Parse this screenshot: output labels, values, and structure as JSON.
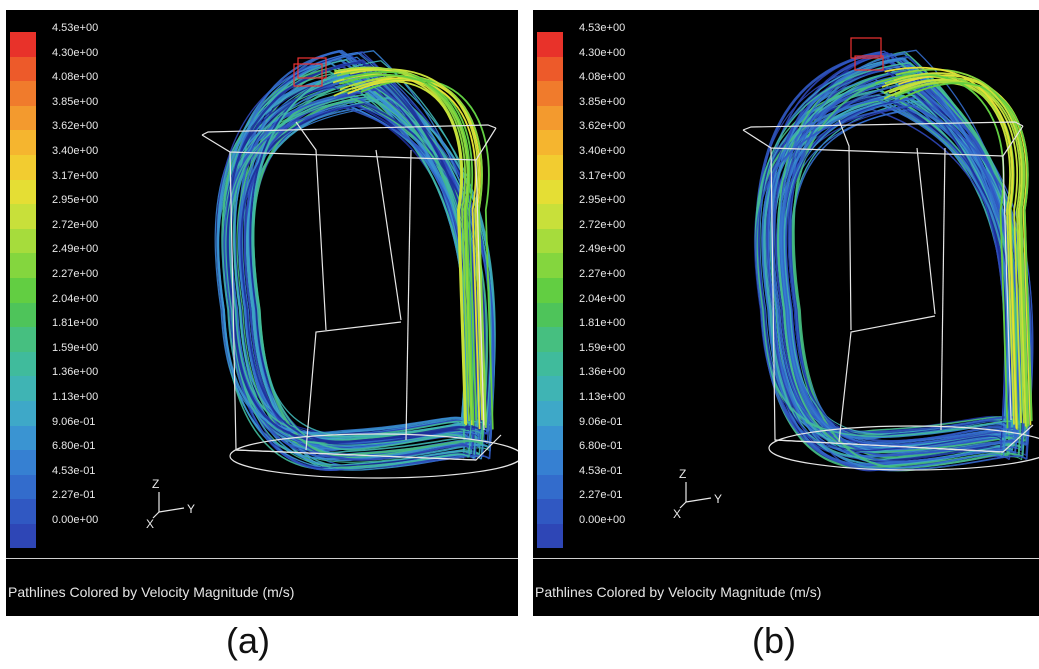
{
  "colorbar": {
    "labels": [
      "4.53e+00",
      "4.30e+00",
      "4.08e+00",
      "3.85e+00",
      "3.62e+00",
      "3.40e+00",
      "3.17e+00",
      "2.95e+00",
      "2.72e+00",
      "2.49e+00",
      "2.27e+00",
      "2.04e+00",
      "1.81e+00",
      "1.59e+00",
      "1.36e+00",
      "1.13e+00",
      "9.06e-01",
      "6.80e-01",
      "4.53e-01",
      "2.27e-01",
      "0.00e+00"
    ],
    "colors": [
      "#e8322a",
      "#ed5a2a",
      "#f07b2c",
      "#f39a2e",
      "#f5b52f",
      "#f2cc30",
      "#e5de34",
      "#c8e03a",
      "#a6dc3c",
      "#84d63e",
      "#62ce42",
      "#4ec45a",
      "#46bf80",
      "#40bb9c",
      "#3fb4b4",
      "#3ea8c8",
      "#3a94d2",
      "#3680d2",
      "#336ccc",
      "#3058c2",
      "#2e46b6"
    ]
  },
  "axes": {
    "z": "Z",
    "x": "X",
    "y": "Y"
  },
  "panel_a": {
    "footer": "Pathlines Colored by Velocity Magnitude (m/s)",
    "label": "(a)"
  },
  "panel_b": {
    "footer": "Pathlines Colored by Velocity Magnitude (m/s)",
    "label": "(b)"
  }
}
